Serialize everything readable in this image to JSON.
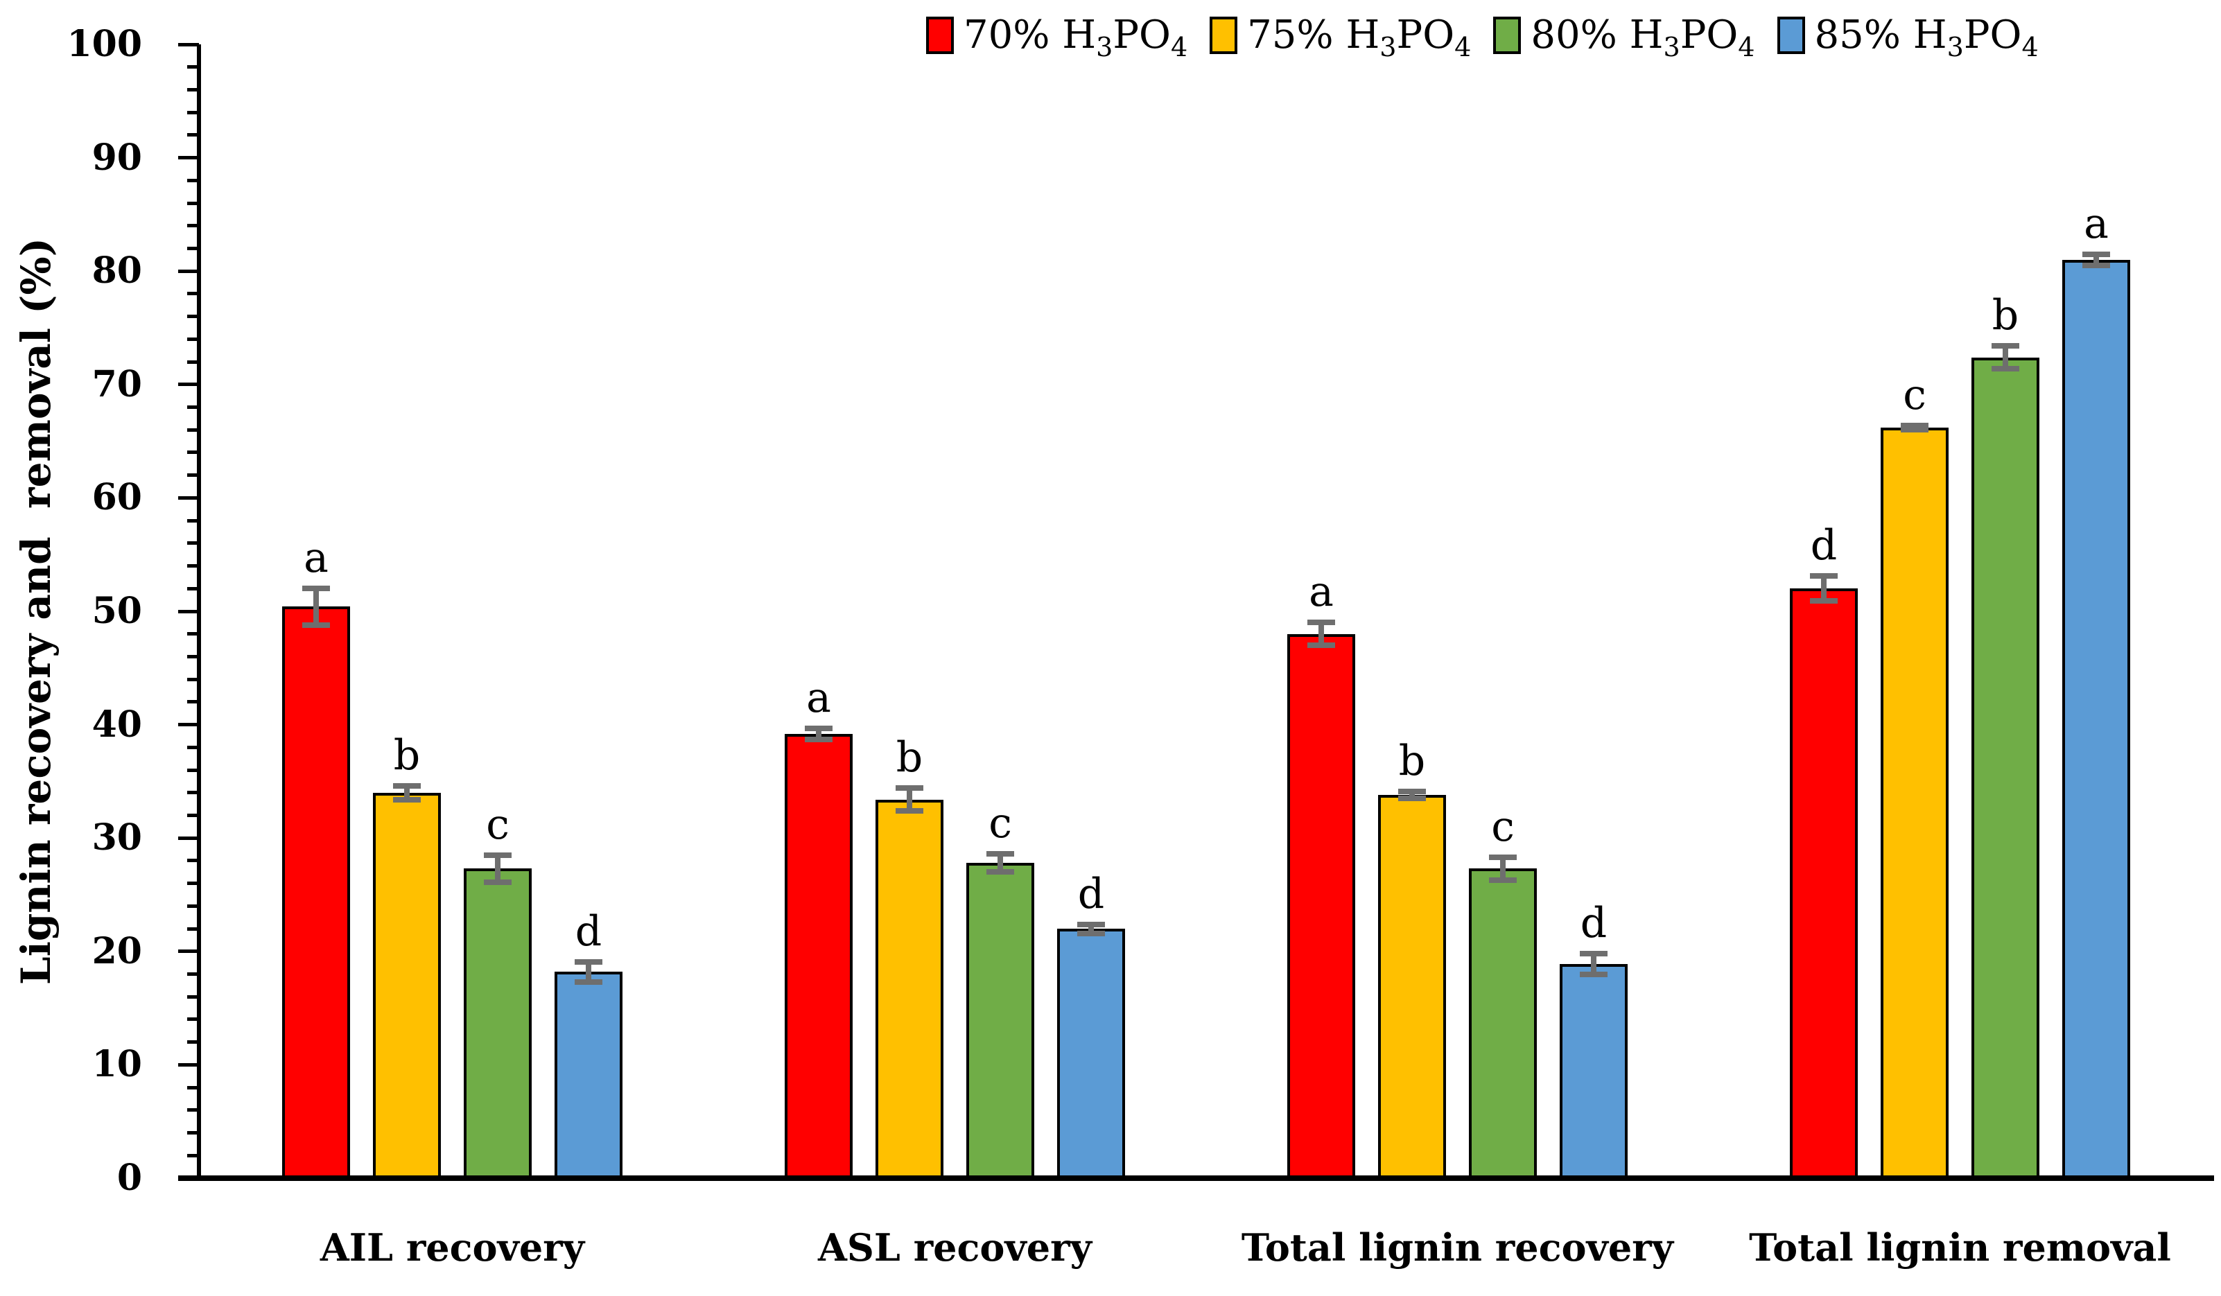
{
  "page": {
    "background": "#FFFFFF"
  },
  "chart_data": {
    "type": "bar",
    "title": "",
    "xlabel": "",
    "ylabel": "Lignin recovery and  removal (%)",
    "ylim": [
      0,
      100
    ],
    "ytick_major": 10,
    "ytick_minor": 2,
    "grid": false,
    "legend_position": "top-right",
    "axis_color": "#000000",
    "error_bar_color": "#6E6E6E",
    "categories": [
      "AIL recovery",
      "ASL recovery",
      "Total lignin recovery",
      "Total lignin removal"
    ],
    "series": [
      {
        "name": "70% H3PO4",
        "color": "#FF0000",
        "values": [
          50.4,
          39.2,
          48.0,
          52.0
        ],
        "errors": [
          1.6,
          0.5,
          1.0,
          1.1
        ],
        "letters": [
          "a",
          "a",
          "a",
          "d"
        ]
      },
      {
        "name": "75% H3PO4",
        "color": "#FFC000",
        "values": [
          34.0,
          33.4,
          33.8,
          66.2
        ],
        "errors": [
          0.6,
          1.0,
          0.3,
          0.2
        ],
        "letters": [
          "b",
          "b",
          "b",
          "c"
        ]
      },
      {
        "name": "80% H3PO4",
        "color": "#70AD47",
        "values": [
          27.3,
          27.8,
          27.3,
          72.4
        ],
        "errors": [
          1.2,
          0.8,
          1.0,
          1.0
        ],
        "letters": [
          "c",
          "c",
          "c",
          "b"
        ]
      },
      {
        "name": "85% H3PO4",
        "color": "#5B9BD5",
        "values": [
          18.2,
          22.0,
          18.9,
          81.0
        ],
        "errors": [
          0.9,
          0.4,
          0.9,
          0.5
        ],
        "letters": [
          "d",
          "d",
          "d",
          "a"
        ]
      }
    ]
  }
}
